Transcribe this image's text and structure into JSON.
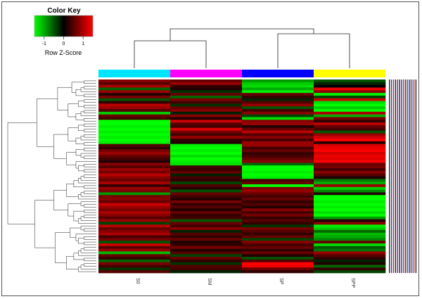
{
  "chart_data": {
    "type": "heatmap",
    "color_key": {
      "title": "Color Key",
      "label": "Row Z-Score",
      "ticks": [
        "-1",
        "0",
        "1"
      ],
      "range": [
        -1.5,
        1.5
      ],
      "low_color": "#00ff00",
      "mid_color": "#000000",
      "high_color": "#ff0000"
    },
    "columns": [
      {
        "name": "S0",
        "sidebar_color": "#00e5ff"
      },
      {
        "name": "SM",
        "sidebar_color": "#ff00ff"
      },
      {
        "name": "SP",
        "sidebar_color": "#0000ff"
      },
      {
        "name": "SPP",
        "sidebar_color": "#ffff00"
      }
    ],
    "column_order": [
      "S0",
      "SM",
      "SP",
      "SPP"
    ],
    "column_dendrogram": [
      [
        "S0",
        "SM"
      ],
      [
        "SP",
        "SPP"
      ]
    ],
    "row_count": 72,
    "rows": [
      [
        0.8,
        0.6,
        -0.9,
        -0.5
      ],
      [
        0.5,
        0.9,
        -1.2,
        -0.2
      ],
      [
        1.0,
        0.3,
        -1.3,
        0.0
      ],
      [
        -0.6,
        0.2,
        -1.0,
        1.4
      ],
      [
        0.9,
        -0.3,
        -1.4,
        0.8
      ],
      [
        0.2,
        0.6,
        0.6,
        -1.4
      ],
      [
        0.7,
        -0.6,
        0.3,
        -0.4
      ],
      [
        -0.5,
        0.7,
        -0.2,
        1.2
      ],
      [
        0.3,
        0.4,
        0.5,
        -1.3
      ],
      [
        1.1,
        -0.3,
        0.9,
        -1.5
      ],
      [
        0.9,
        0.6,
        -0.5,
        -1.2
      ],
      [
        0.5,
        0.8,
        0.4,
        -1.5
      ],
      [
        -1.2,
        -0.2,
        0.8,
        1.0
      ],
      [
        0.6,
        0.8,
        -0.4,
        -1.0
      ],
      [
        0.4,
        0.2,
        -1.3,
        0.7
      ],
      [
        -1.5,
        1.2,
        0.8,
        0.3
      ],
      [
        -1.5,
        0.5,
        0.9,
        1.1
      ],
      [
        -1.4,
        0.4,
        0.2,
        0.6
      ],
      [
        -1.5,
        1.3,
        0.6,
        0.4
      ],
      [
        -1.4,
        0.7,
        1.1,
        -0.5
      ],
      [
        -1.5,
        0.4,
        0.5,
        0.9
      ],
      [
        -1.4,
        0.9,
        0.8,
        1.2
      ],
      [
        -1.5,
        0.3,
        0.4,
        1.5
      ],
      [
        -1.4,
        0.2,
        0.9,
        0.2
      ],
      [
        0.5,
        -1.4,
        0.9,
        1.3
      ],
      [
        0.3,
        -1.5,
        0.4,
        1.4
      ],
      [
        0.7,
        -1.4,
        0.6,
        1.5
      ],
      [
        0.9,
        -1.5,
        0.3,
        1.2
      ],
      [
        0.6,
        -1.3,
        0.4,
        1.4
      ],
      [
        0.4,
        -1.5,
        0.6,
        1.3
      ],
      [
        0.2,
        -1.4,
        0.8,
        1.5
      ],
      [
        0.8,
        -1.3,
        -0.6,
        0.6
      ],
      [
        0.5,
        0.4,
        -1.5,
        0.7
      ],
      [
        0.9,
        0.3,
        -1.5,
        0.4
      ],
      [
        0.7,
        0.6,
        -1.4,
        0.8
      ],
      [
        1.1,
        -0.2,
        -1.5,
        0.5
      ],
      [
        0.8,
        0.4,
        -1.4,
        0.2
      ],
      [
        0.6,
        0.3,
        0.4,
        -0.7
      ],
      [
        1.0,
        -0.4,
        0.6,
        -1.0
      ],
      [
        0.3,
        0.5,
        -1.5,
        0.9
      ],
      [
        0.9,
        0.2,
        0.7,
        -1.2
      ],
      [
        0.7,
        -0.5,
        0.9,
        -0.8
      ],
      [
        -0.9,
        0.6,
        0.6,
        0.2
      ],
      [
        0.7,
        0.4,
        0.4,
        -1.5
      ],
      [
        0.8,
        0.2,
        0.6,
        -1.5
      ],
      [
        0.6,
        0.7,
        0.3,
        -1.4
      ],
      [
        1.2,
        0.3,
        0.5,
        -1.5
      ],
      [
        0.9,
        0.5,
        0.2,
        -1.4
      ],
      [
        0.7,
        0.2,
        0.8,
        -1.5
      ],
      [
        1.0,
        0.6,
        0.4,
        -1.3
      ],
      [
        0.8,
        0.3,
        0.7,
        -1.5
      ],
      [
        0.5,
        0.4,
        0.3,
        -0.9
      ],
      [
        0.9,
        -0.5,
        0.5,
        0.2
      ],
      [
        -0.4,
        0.6,
        0.3,
        0.8
      ],
      [
        1.1,
        0.4,
        -0.3,
        -1.4
      ],
      [
        0.6,
        0.8,
        0.7,
        -1.2
      ],
      [
        0.8,
        -0.2,
        0.5,
        -0.6
      ],
      [
        1.0,
        0.5,
        0.3,
        -1.1
      ],
      [
        0.4,
        0.3,
        0.6,
        -1.0
      ],
      [
        0.7,
        0.6,
        -0.4,
        -0.8
      ],
      [
        -0.5,
        0.2,
        0.8,
        0.6
      ],
      [
        1.2,
        0.3,
        0.4,
        -1.3
      ],
      [
        0.5,
        0.7,
        0.6,
        -0.5
      ],
      [
        0.9,
        0.2,
        0.3,
        -0.7
      ],
      [
        -1.1,
        0.5,
        0.6,
        0.9
      ],
      [
        0.6,
        -0.4,
        0.2,
        0.5
      ],
      [
        0.3,
        0.6,
        -0.5,
        0.3
      ],
      [
        -0.6,
        0.3,
        0.5,
        -0.2
      ],
      [
        0.7,
        -0.3,
        1.5,
        0.2
      ],
      [
        0.4,
        0.5,
        1.4,
        -0.6
      ],
      [
        -0.3,
        0.4,
        0.6,
        0.3
      ],
      [
        0.5,
        -0.2,
        0.3,
        -0.4
      ]
    ]
  }
}
